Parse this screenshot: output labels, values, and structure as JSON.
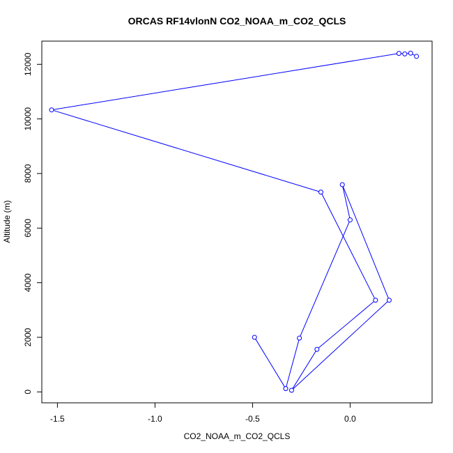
{
  "chart_data": {
    "type": "line",
    "title": "ORCAS RF14vlonN CO2_NOAA_m_CO2_QCLS",
    "xlabel": "CO2_NOAA_m_CO2_QCLS",
    "ylabel": "Altitude (m)",
    "xlim": [
      -1.58,
      0.42
    ],
    "ylim": [
      -400,
      12850
    ],
    "x_ticks": [
      -1.5,
      -1.0,
      -0.5,
      0.0
    ],
    "x_tick_labels": [
      "-1.5",
      "-1.0",
      "-0.5",
      "0.0"
    ],
    "y_ticks": [
      0,
      2000,
      4000,
      6000,
      8000,
      10000,
      12000
    ],
    "y_tick_labels": [
      "0",
      "2000",
      "4000",
      "6000",
      "8000",
      "10000",
      "12000"
    ],
    "grid": false,
    "series": [
      {
        "color": "#0000ff",
        "marker": "open-circle",
        "points": [
          {
            "x": -0.49,
            "y": 2000
          },
          {
            "x": -0.33,
            "y": 120
          },
          {
            "x": -0.26,
            "y": 1970
          },
          {
            "x": 0.0,
            "y": 6300
          },
          {
            "x": -0.04,
            "y": 7590
          },
          {
            "x": 0.2,
            "y": 3360
          },
          {
            "x": -0.3,
            "y": 60
          },
          {
            "x": -0.17,
            "y": 1560
          },
          {
            "x": 0.13,
            "y": 3360
          },
          {
            "x": -0.15,
            "y": 7320
          },
          {
            "x": -1.53,
            "y": 10330
          },
          {
            "x": 0.25,
            "y": 12400
          },
          {
            "x": 0.28,
            "y": 12380
          },
          {
            "x": 0.31,
            "y": 12410
          },
          {
            "x": 0.34,
            "y": 12290
          }
        ]
      }
    ]
  }
}
